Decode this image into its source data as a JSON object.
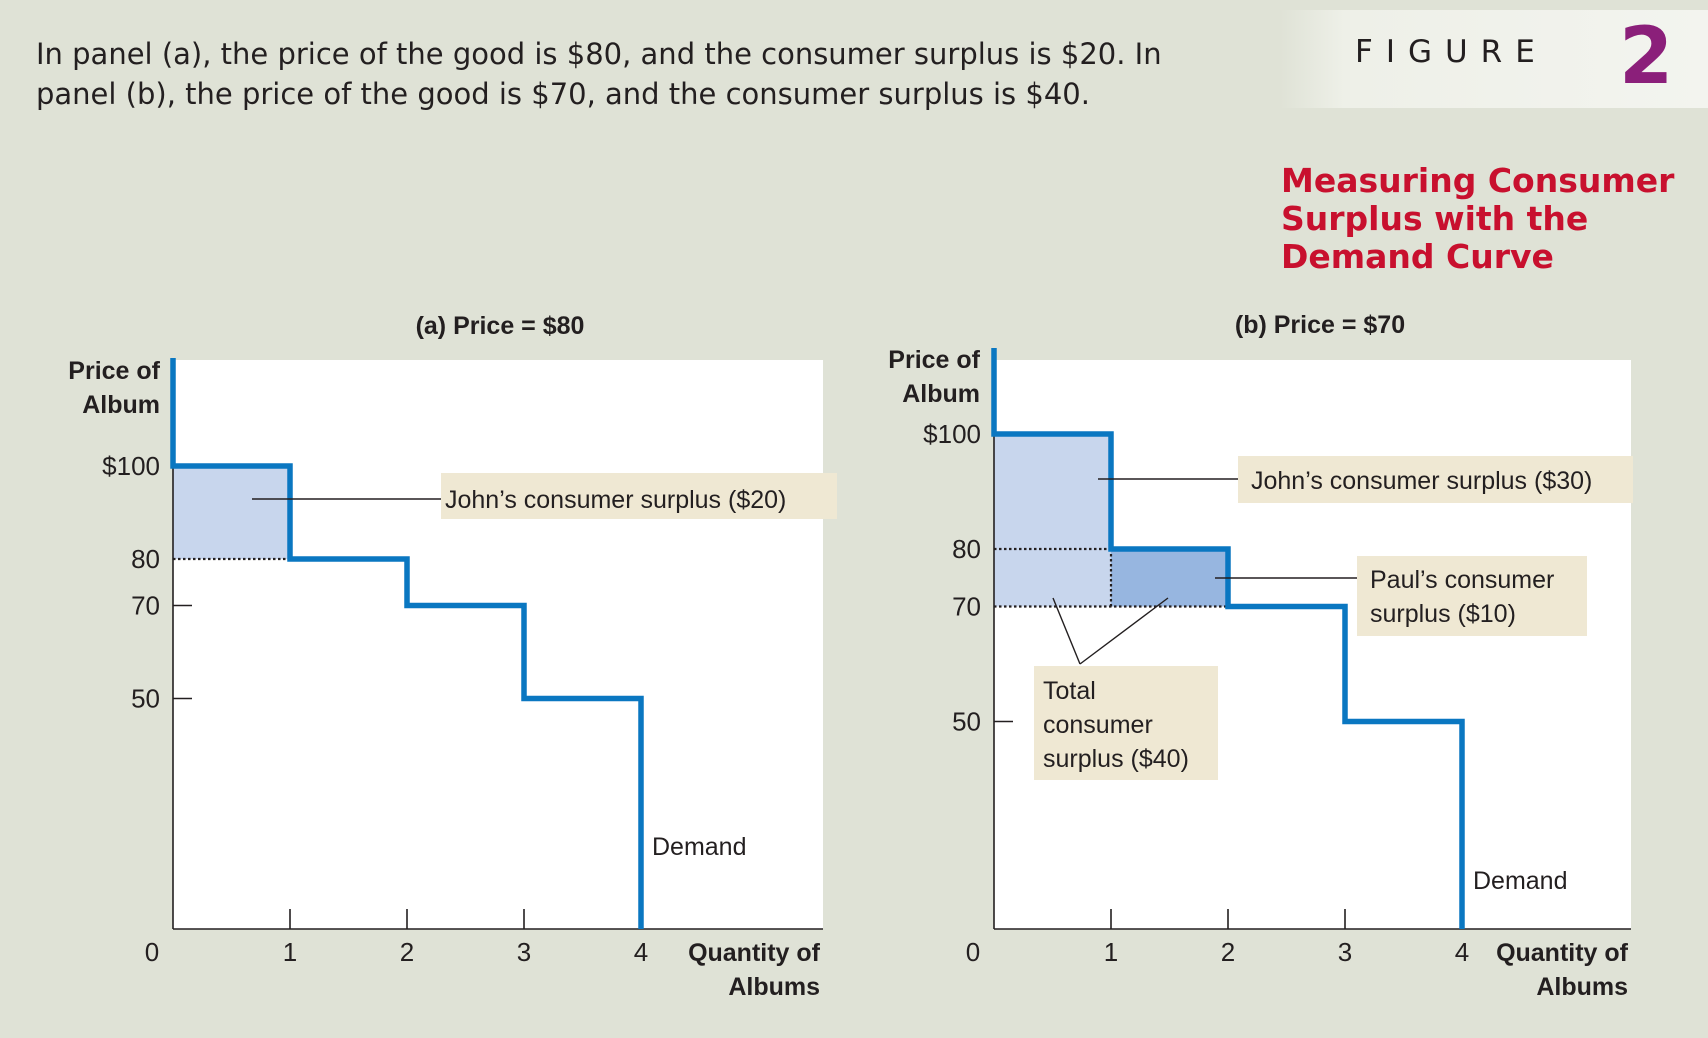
{
  "caption": "In panel (a), the price of the good is $80, and the consumer surplus is $20. In panel (b), the price of the good is $70, and the consumer surplus is $40.",
  "figure": {
    "label": "FIGURE",
    "number": "2",
    "title": "Measuring Consumer Surplus with the Demand Curve"
  },
  "colors": {
    "background": "#dfe2d6",
    "demand": "#0a77c1",
    "surplus_light": "#c8d6ed",
    "surplus_dark": "#97b6e0",
    "callout": "#efe8d3",
    "figure_number": "#8b1f7a",
    "figure_title": "#c8102e"
  },
  "chart_data": [
    {
      "type": "line",
      "panel_title": "(a) Price = $80",
      "ylabel": "Price of Album",
      "xlabel": "Quantity of Albums",
      "xlim": [
        0,
        5.5
      ],
      "ylim": [
        0,
        100
      ],
      "x_ticks": [
        "1",
        "2",
        "3",
        "4"
      ],
      "origin_label": "0",
      "y_ticks": [
        {
          "value": 100,
          "label": "$100"
        },
        {
          "value": 80,
          "label": "80"
        },
        {
          "value": 70,
          "label": "70"
        },
        {
          "value": 50,
          "label": "50"
        }
      ],
      "demand_label": "Demand",
      "price": 80,
      "demand_steps": [
        {
          "quantity": 1,
          "price": 100
        },
        {
          "quantity": 2,
          "price": 80
        },
        {
          "quantity": 3,
          "price": 70
        },
        {
          "quantity": 4,
          "price": 50
        }
      ],
      "surplus_areas": [
        {
          "label": "John’s consumer surplus ($20)",
          "value": 20,
          "q_from": 0,
          "q_to": 1,
          "p_from": 80,
          "p_to": 100
        }
      ]
    },
    {
      "type": "line",
      "panel_title": "(b) Price = $70",
      "ylabel": "Price of Album",
      "xlabel": "Quantity of Albums",
      "xlim": [
        0,
        5.4
      ],
      "ylim": [
        0,
        100
      ],
      "x_ticks": [
        "1",
        "2",
        "3",
        "4"
      ],
      "origin_label": "0",
      "y_ticks": [
        {
          "value": 100,
          "label": "$100"
        },
        {
          "value": 80,
          "label": "80"
        },
        {
          "value": 70,
          "label": "70"
        },
        {
          "value": 50,
          "label": "50"
        }
      ],
      "demand_label": "Demand",
      "price": 70,
      "demand_steps": [
        {
          "quantity": 1,
          "price": 100
        },
        {
          "quantity": 2,
          "price": 80
        },
        {
          "quantity": 3,
          "price": 70
        },
        {
          "quantity": 4,
          "price": 50
        }
      ],
      "surplus_areas": [
        {
          "label": "John’s consumer surplus ($30)",
          "value": 30,
          "q_from": 0,
          "q_to": 1,
          "p_from": 70,
          "p_to": 100
        },
        {
          "label": "Paul’s consumer surplus ($10)",
          "value": 10,
          "q_from": 1,
          "q_to": 2,
          "p_from": 70,
          "p_to": 80
        }
      ],
      "total_label": "Total consumer surplus ($40)",
      "total_value": 40
    }
  ]
}
